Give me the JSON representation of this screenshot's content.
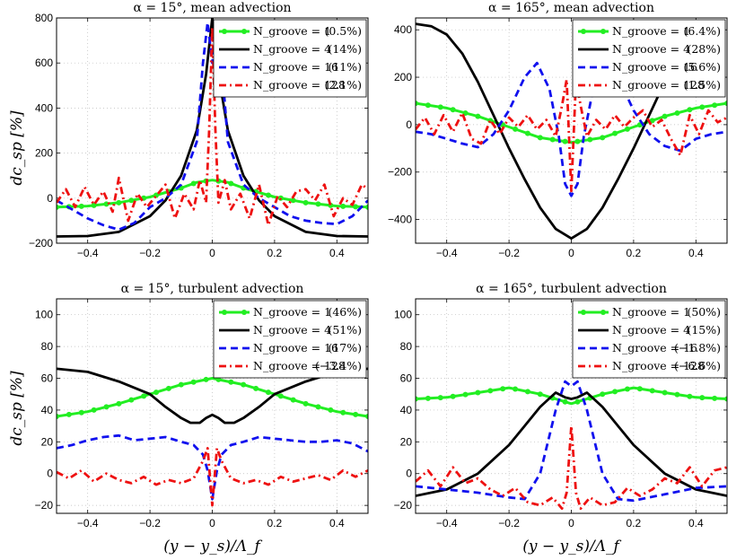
{
  "figure": {
    "xlabel": "(y − y_s)/Λ_f",
    "ylabel": "dc_sp [%]"
  },
  "chart_data": [
    {
      "type": "line",
      "title": "α = 15°, mean advection",
      "xlim": [
        -0.5,
        0.5
      ],
      "ylim": [
        -200,
        800
      ],
      "xticks": [
        -0.4,
        -0.2,
        0,
        0.2,
        0.4
      ],
      "xtick_labels": [
        "−0.4",
        "−0.2",
        "0",
        "0.2",
        "0.4"
      ],
      "yticks": [
        -200,
        0,
        200,
        400,
        600,
        800
      ],
      "ytick_labels": [
        "−200",
        "0",
        "200",
        "400",
        "600",
        "800"
      ],
      "grid": true,
      "legend_loc": "top-right",
      "series": [
        {
          "name": "N_groove = 1",
          "pct": "(0.5%)",
          "style": "green-dot",
          "color": "#22ee22",
          "x": [
            -0.5,
            -0.4,
            -0.3,
            -0.2,
            -0.1,
            -0.05,
            0,
            0.05,
            0.1,
            0.2,
            0.3,
            0.4,
            0.5
          ],
          "y": [
            -40,
            -35,
            -20,
            5,
            45,
            70,
            80,
            70,
            45,
            5,
            -20,
            -35,
            -40
          ]
        },
        {
          "name": "N_groove = 4",
          "pct": "(14%)",
          "style": "black-solid",
          "color": "#000000",
          "x": [
            -0.5,
            -0.4,
            -0.3,
            -0.2,
            -0.15,
            -0.1,
            -0.05,
            -0.02,
            0,
            0.02,
            0.05,
            0.1,
            0.15,
            0.2,
            0.3,
            0.4,
            0.5
          ],
          "y": [
            -170,
            -168,
            -150,
            -80,
            -10,
            100,
            300,
            550,
            800,
            550,
            300,
            100,
            -10,
            -80,
            -150,
            -168,
            -170
          ]
        },
        {
          "name": "N_groove = 16",
          "pct": "(11%)",
          "style": "blue-dash",
          "color": "#1111ee",
          "x": [
            -0.5,
            -0.45,
            -0.4,
            -0.35,
            -0.3,
            -0.25,
            -0.2,
            -0.15,
            -0.1,
            -0.05,
            -0.03,
            -0.015,
            0,
            0.015,
            0.03,
            0.05,
            0.1,
            0.15,
            0.2,
            0.25,
            0.3,
            0.35,
            0.4,
            0.45,
            0.5
          ],
          "y": [
            -10,
            -50,
            -90,
            -120,
            -140,
            -110,
            -40,
            0,
            60,
            250,
            600,
            780,
            600,
            780,
            600,
            250,
            60,
            0,
            -40,
            -80,
            -100,
            -110,
            -115,
            -80,
            -10
          ]
        },
        {
          "name": "N_groove = 128",
          "pct": "(2.1%)",
          "style": "red-dashdot",
          "color": "#ee1111",
          "x": [
            -0.5,
            -0.47,
            -0.44,
            -0.41,
            -0.38,
            -0.35,
            -0.32,
            -0.3,
            -0.27,
            -0.24,
            -0.21,
            -0.18,
            -0.15,
            -0.12,
            -0.09,
            -0.06,
            -0.04,
            -0.02,
            -0.01,
            0,
            0.01,
            0.02,
            0.04,
            0.06,
            0.09,
            0.12,
            0.15,
            0.18,
            0.21,
            0.24,
            0.27,
            0.3,
            0.33,
            0.36,
            0.39,
            0.42,
            0.45,
            0.48,
            0.5
          ],
          "y": [
            -20,
            40,
            -40,
            50,
            -30,
            30,
            -60,
            90,
            -100,
            20,
            -40,
            10,
            60,
            -90,
            20,
            -50,
            80,
            -20,
            300,
            760,
            300,
            -20,
            80,
            -50,
            20,
            -90,
            60,
            -120,
            10,
            -40,
            30,
            40,
            -10,
            60,
            -80,
            0,
            -30,
            60,
            40
          ]
        }
      ]
    },
    {
      "type": "line",
      "title": "α = 165°, mean advection",
      "xlim": [
        -0.5,
        0.5
      ],
      "ylim": [
        -500,
        450
      ],
      "xticks": [
        -0.4,
        -0.2,
        0,
        0.2,
        0.4
      ],
      "xtick_labels": [
        "−0.4",
        "−0.2",
        "0",
        "0.2",
        "0.4"
      ],
      "yticks": [
        -400,
        -200,
        0,
        200,
        400
      ],
      "ytick_labels": [
        "−400",
        "−200",
        "0",
        "200",
        "400"
      ],
      "grid": true,
      "legend_loc": "top-right",
      "series": [
        {
          "name": "N_groove = 1",
          "pct": "(6.4%)",
          "style": "green-dot",
          "color": "#22ee22",
          "x": [
            -0.5,
            -0.4,
            -0.3,
            -0.2,
            -0.1,
            0,
            0.1,
            0.2,
            0.3,
            0.4,
            0.5
          ],
          "y": [
            90,
            70,
            35,
            -10,
            -55,
            -75,
            -55,
            -10,
            35,
            70,
            90
          ]
        },
        {
          "name": "N_groove = 4",
          "pct": "(28%)",
          "style": "black-solid",
          "color": "#000000",
          "x": [
            -0.5,
            -0.45,
            -0.4,
            -0.35,
            -0.3,
            -0.25,
            -0.2,
            -0.15,
            -0.1,
            -0.05,
            0,
            0.05,
            0.1,
            0.15,
            0.2,
            0.25,
            0.3,
            0.35
          ],
          "y": [
            425,
            415,
            380,
            300,
            180,
            40,
            -100,
            -230,
            -350,
            -440,
            -480,
            -440,
            -350,
            -230,
            -100,
            40,
            180,
            300
          ]
        },
        {
          "name": "N_groove = 16",
          "pct": "(5.6%)",
          "style": "blue-dash",
          "color": "#1111ee",
          "x": [
            -0.5,
            -0.45,
            -0.4,
            -0.35,
            -0.3,
            -0.25,
            -0.2,
            -0.15,
            -0.11,
            -0.07,
            -0.04,
            -0.02,
            0,
            0.02,
            0.04,
            0.07,
            0.1,
            0.15,
            0.2,
            0.25,
            0.3,
            0.35,
            0.4,
            0.45,
            0.5
          ],
          "y": [
            -30,
            -40,
            -60,
            -80,
            -95,
            -40,
            60,
            200,
            260,
            150,
            -50,
            -250,
            -300,
            -250,
            -50,
            150,
            260,
            200,
            60,
            -40,
            -90,
            -110,
            -60,
            -40,
            -30
          ]
        },
        {
          "name": "N_groove = 128",
          "pct": "(1.5%)",
          "style": "red-dashdot",
          "color": "#ee1111",
          "x": [
            -0.5,
            -0.47,
            -0.44,
            -0.41,
            -0.38,
            -0.35,
            -0.32,
            -0.29,
            -0.26,
            -0.23,
            -0.2,
            -0.17,
            -0.14,
            -0.11,
            -0.08,
            -0.05,
            -0.03,
            -0.015,
            0,
            0.015,
            0.03,
            0.05,
            0.08,
            0.11,
            0.14,
            0.17,
            0.2,
            0.23,
            0.26,
            0.29,
            0.32,
            0.35,
            0.38,
            0.41,
            0.44,
            0.47,
            0.5
          ],
          "y": [
            -20,
            30,
            -40,
            40,
            -30,
            50,
            -60,
            -80,
            20,
            -40,
            30,
            -10,
            40,
            -20,
            20,
            -50,
            80,
            190,
            -280,
            190,
            80,
            -50,
            20,
            -20,
            40,
            -10,
            30,
            60,
            -10,
            20,
            -60,
            -130,
            40,
            -40,
            60,
            10,
            30
          ]
        }
      ]
    },
    {
      "type": "line",
      "title": "α = 15°, turbulent advection",
      "xlim": [
        -0.5,
        0.5
      ],
      "ylim": [
        -25,
        110
      ],
      "xticks": [
        -0.4,
        -0.2,
        0,
        0.2,
        0.4
      ],
      "xtick_labels": [
        "−0.4",
        "−0.2",
        "0",
        "0.2",
        "0.4"
      ],
      "yticks": [
        -20,
        0,
        20,
        40,
        60,
        80,
        100
      ],
      "ytick_labels": [
        "−20",
        "0",
        "20",
        "40",
        "60",
        "80",
        "100"
      ],
      "grid": true,
      "legend_loc": "top-right",
      "series": [
        {
          "name": "N_groove = 1",
          "pct": "(46%)",
          "style": "green-dot",
          "color": "#22ee22",
          "x": [
            -0.5,
            -0.4,
            -0.3,
            -0.2,
            -0.1,
            0,
            0.1,
            0.2,
            0.3,
            0.4,
            0.5
          ],
          "y": [
            36,
            39,
            44,
            50,
            56,
            60,
            56,
            50,
            44,
            39,
            36
          ]
        },
        {
          "name": "N_groove = 4",
          "pct": "(51%)",
          "style": "black-solid",
          "color": "#000000",
          "x": [
            -0.5,
            -0.4,
            -0.3,
            -0.2,
            -0.15,
            -0.1,
            -0.07,
            -0.04,
            -0.02,
            0,
            0.02,
            0.04,
            0.07,
            0.1,
            0.15,
            0.2,
            0.3,
            0.4,
            0.5
          ],
          "y": [
            66,
            64,
            58,
            50,
            42,
            35,
            32,
            32,
            35,
            37,
            35,
            32,
            32,
            35,
            42,
            50,
            58,
            64,
            66
          ]
        },
        {
          "name": "N_groove = 16",
          "pct": "(17%)",
          "style": "blue-dash",
          "color": "#1111ee",
          "x": [
            -0.5,
            -0.45,
            -0.4,
            -0.35,
            -0.3,
            -0.25,
            -0.2,
            -0.15,
            -0.1,
            -0.06,
            -0.03,
            -0.015,
            0,
            0.015,
            0.03,
            0.06,
            0.1,
            0.15,
            0.2,
            0.25,
            0.3,
            0.35,
            0.4,
            0.45,
            0.5
          ],
          "y": [
            16,
            18,
            21,
            23,
            24,
            21,
            22,
            23,
            20,
            18,
            12,
            2,
            -16,
            2,
            12,
            18,
            20,
            23,
            22,
            21,
            20,
            20,
            21,
            19,
            14
          ]
        },
        {
          "name": "N_groove = 128",
          "pct": "(−3.4%)",
          "style": "red-dashdot",
          "color": "#ee1111",
          "x": [
            -0.5,
            -0.46,
            -0.42,
            -0.38,
            -0.34,
            -0.3,
            -0.26,
            -0.22,
            -0.18,
            -0.14,
            -0.1,
            -0.06,
            -0.03,
            -0.015,
            0,
            0.015,
            0.03,
            0.06,
            0.1,
            0.14,
            0.18,
            0.22,
            0.26,
            0.3,
            0.34,
            0.38,
            0.42,
            0.46,
            0.5
          ],
          "y": [
            1,
            -3,
            2,
            -5,
            0,
            -4,
            -6,
            -2,
            -7,
            -4,
            -6,
            -3,
            8,
            16,
            -20,
            16,
            8,
            -3,
            -6,
            -4,
            -7,
            -2,
            -5,
            -3,
            -1,
            -4,
            2,
            -2,
            2
          ]
        }
      ]
    },
    {
      "type": "line",
      "title": "α = 165°, turbulent advection",
      "xlim": [
        -0.5,
        0.5
      ],
      "ylim": [
        -25,
        110
      ],
      "xticks": [
        -0.4,
        -0.2,
        0,
        0.2,
        0.4
      ],
      "xtick_labels": [
        "−0.4",
        "−0.2",
        "0",
        "0.2",
        "0.4"
      ],
      "yticks": [
        -20,
        0,
        20,
        40,
        60,
        80,
        100
      ],
      "ytick_labels": [
        "−20",
        "0",
        "20",
        "40",
        "60",
        "80",
        "100"
      ],
      "grid": true,
      "legend_loc": "top-right",
      "series": [
        {
          "name": "N_groove = 1",
          "pct": "(50%)",
          "style": "green-dot",
          "color": "#22ee22",
          "x": [
            -0.5,
            -0.4,
            -0.3,
            -0.2,
            -0.1,
            0,
            0.1,
            0.2,
            0.3,
            0.4,
            0.5
          ],
          "y": [
            47,
            48,
            51,
            54,
            50,
            44,
            50,
            54,
            51,
            48,
            47
          ]
        },
        {
          "name": "N_groove = 4",
          "pct": "(15%)",
          "style": "black-solid",
          "color": "#000000",
          "x": [
            -0.5,
            -0.4,
            -0.3,
            -0.2,
            -0.15,
            -0.1,
            -0.05,
            -0.02,
            0,
            0.02,
            0.05,
            0.1,
            0.15,
            0.2,
            0.3,
            0.4,
            0.5
          ],
          "y": [
            -14,
            -10,
            0,
            18,
            30,
            42,
            51,
            48,
            47,
            48,
            51,
            42,
            30,
            18,
            0,
            -10,
            -14
          ]
        },
        {
          "name": "N_groove = 16",
          "pct": "(−1.8%)",
          "style": "blue-dash",
          "color": "#1111ee",
          "x": [
            -0.5,
            -0.4,
            -0.3,
            -0.2,
            -0.15,
            -0.1,
            -0.05,
            -0.02,
            0,
            0.02,
            0.05,
            0.1,
            0.15,
            0.2,
            0.3,
            0.4,
            0.5
          ],
          "y": [
            -8,
            -10,
            -12,
            -15,
            -16,
            0,
            40,
            58,
            55,
            58,
            40,
            0,
            -16,
            -17,
            -13,
            -9,
            -8
          ]
        },
        {
          "name": "N_groove = 128",
          "pct": "(−6.6%)",
          "style": "red-dashdot",
          "color": "#ee1111",
          "x": [
            -0.5,
            -0.46,
            -0.42,
            -0.38,
            -0.34,
            -0.3,
            -0.26,
            -0.22,
            -0.18,
            -0.14,
            -0.1,
            -0.06,
            -0.03,
            -0.015,
            0,
            0.015,
            0.03,
            0.06,
            0.1,
            0.14,
            0.18,
            0.22,
            0.26,
            0.3,
            0.34,
            0.38,
            0.42,
            0.46,
            0.5
          ],
          "y": [
            -5,
            2,
            -8,
            4,
            -6,
            -3,
            -10,
            -14,
            -9,
            -18,
            -20,
            -15,
            -22,
            -12,
            30,
            -12,
            -22,
            -15,
            -20,
            -18,
            -9,
            -14,
            -10,
            -3,
            -6,
            4,
            -8,
            2,
            4
          ]
        }
      ]
    }
  ]
}
